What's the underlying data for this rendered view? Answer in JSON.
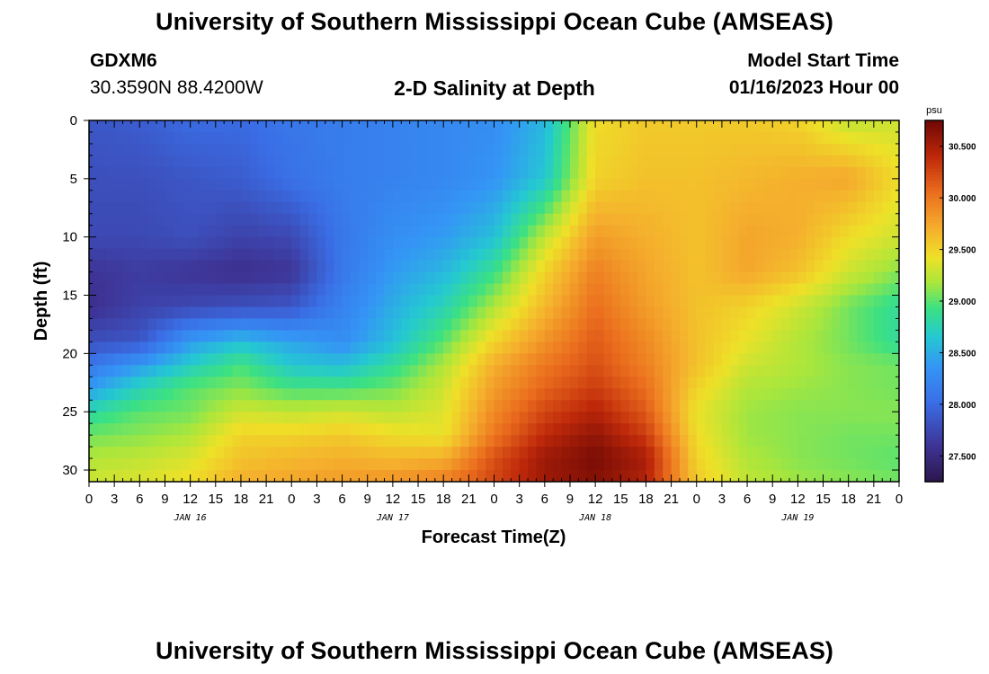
{
  "title": "University of Southern Mississippi Ocean Cube (AMSEAS)",
  "footer_title": "University of Southern Mississippi Ocean Cube (AMSEAS)",
  "station": {
    "id": "GDXM6",
    "coords": "30.3590N  88.4200W"
  },
  "plot_title": "2-D Salinity at Depth",
  "model_start": {
    "label": "Model Start Time",
    "value": "01/16/2023 Hour 00"
  },
  "chart_data": {
    "type": "heatmap",
    "title": "2-D Salinity at Depth",
    "xlabel": "Forecast Time(Z)",
    "ylabel": "Depth (ft)",
    "x_tick_labels": [
      "0",
      "3",
      "6",
      "9",
      "12",
      "15",
      "18",
      "21",
      "0",
      "3",
      "6",
      "9",
      "12",
      "15",
      "18",
      "21",
      "0",
      "3",
      "6",
      "9",
      "12",
      "15",
      "18",
      "21",
      "0",
      "3",
      "6",
      "9",
      "12",
      "15",
      "18",
      "21",
      "0"
    ],
    "day_labels": [
      "JAN 16",
      "JAN 17",
      "JAN 18",
      "JAN 19"
    ],
    "x_range_hours": [
      0,
      96
    ],
    "y_ticks": [
      0,
      5,
      10,
      15,
      20,
      25,
      30
    ],
    "y_range": [
      0,
      31
    ],
    "y_inverted": true,
    "colorbar": {
      "unit": "psu",
      "ticks": [
        "30.500",
        "30.000",
        "29.500",
        "29.000",
        "28.500",
        "28.000",
        "27.500"
      ],
      "range": [
        27.25,
        30.75
      ]
    },
    "x_hours": [
      0,
      6,
      12,
      18,
      24,
      30,
      36,
      42,
      48,
      54,
      60,
      66,
      72,
      78,
      84,
      90,
      96
    ],
    "depths_ft": [
      0,
      5,
      10,
      13,
      16,
      19,
      21,
      23,
      25,
      27,
      29,
      31
    ],
    "salinity_psu": [
      [
        27.85,
        27.9,
        28.0,
        28.0,
        28.1,
        28.15,
        28.2,
        28.25,
        28.3,
        28.55,
        29.45,
        29.55,
        29.55,
        29.55,
        29.5,
        29.25,
        29.3
      ],
      [
        27.8,
        27.8,
        27.85,
        27.9,
        28.05,
        28.15,
        28.2,
        28.25,
        28.35,
        28.65,
        29.5,
        29.6,
        29.6,
        29.65,
        29.7,
        29.75,
        29.45
      ],
      [
        27.75,
        27.75,
        27.8,
        27.7,
        27.75,
        28.1,
        28.3,
        28.4,
        28.6,
        29.25,
        29.8,
        29.7,
        29.6,
        29.75,
        29.7,
        29.45,
        29.3
      ],
      [
        27.6,
        27.65,
        27.6,
        27.55,
        27.6,
        28.1,
        28.4,
        28.55,
        28.9,
        29.5,
        29.95,
        29.75,
        29.6,
        29.75,
        29.6,
        29.3,
        29.1
      ],
      [
        27.55,
        27.7,
        27.75,
        27.8,
        27.85,
        28.2,
        28.5,
        28.75,
        29.2,
        29.65,
        30.05,
        29.8,
        29.6,
        29.5,
        29.3,
        29.05,
        28.85
      ],
      [
        27.8,
        27.85,
        28.4,
        28.6,
        28.45,
        28.3,
        28.6,
        29.0,
        29.5,
        29.85,
        30.15,
        29.9,
        29.6,
        29.4,
        29.2,
        29.05,
        28.85
      ],
      [
        28.1,
        28.4,
        28.7,
        28.95,
        28.65,
        28.6,
        28.85,
        29.2,
        29.7,
        30.0,
        30.2,
        29.95,
        29.6,
        29.3,
        29.2,
        29.1,
        29.05
      ],
      [
        28.4,
        28.75,
        29.0,
        29.1,
        28.95,
        28.95,
        29.05,
        29.3,
        29.8,
        30.1,
        30.3,
        30.05,
        29.5,
        29.2,
        29.15,
        29.1,
        29.05
      ],
      [
        28.8,
        29.0,
        29.05,
        29.3,
        29.25,
        29.3,
        29.25,
        29.35,
        29.9,
        30.25,
        30.45,
        30.15,
        29.4,
        29.15,
        29.1,
        29.1,
        29.1
      ],
      [
        29.05,
        29.1,
        29.2,
        29.5,
        29.5,
        29.55,
        29.45,
        29.4,
        30.0,
        30.4,
        30.6,
        30.3,
        29.45,
        29.15,
        29.1,
        29.05,
        29.05
      ],
      [
        29.2,
        29.25,
        29.35,
        29.6,
        29.65,
        29.7,
        29.65,
        29.7,
        30.2,
        30.55,
        30.7,
        30.5,
        29.5,
        29.2,
        29.1,
        29.05,
        29.0
      ],
      [
        29.3,
        29.35,
        29.45,
        29.7,
        29.75,
        29.8,
        29.85,
        29.95,
        30.25,
        30.55,
        30.65,
        30.45,
        29.55,
        29.25,
        29.15,
        29.1,
        29.05
      ]
    ]
  }
}
